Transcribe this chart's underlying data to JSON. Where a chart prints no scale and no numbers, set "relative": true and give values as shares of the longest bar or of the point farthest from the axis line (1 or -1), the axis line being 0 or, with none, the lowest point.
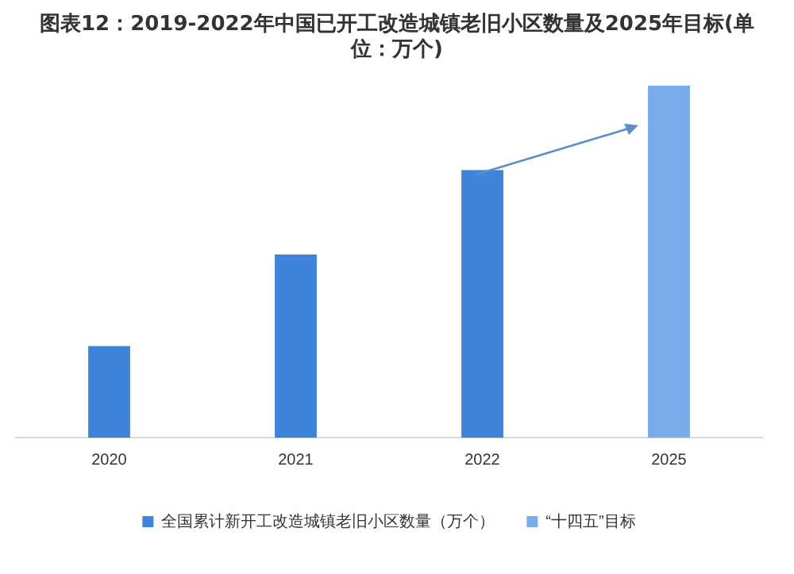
{
  "chart_data": {
    "type": "bar",
    "title": "图表12：2019-2022年中国已开工改造城镇老旧小区数量及2025年目标(单位：万个)",
    "relative": true,
    "categories": [
      "2020",
      "2021",
      "2022",
      "2025"
    ],
    "series": [
      {
        "name": "全国累计新开工改造城镇老旧小区数量（万个）",
        "color": "#3f84dc",
        "values": [
          0.26,
          0.52,
          0.76,
          null
        ]
      },
      {
        "name": "“十四五”目标",
        "color": "#7aaceb",
        "values": [
          null,
          null,
          null,
          1
        ]
      }
    ],
    "grid": false,
    "legend": "bottom"
  }
}
